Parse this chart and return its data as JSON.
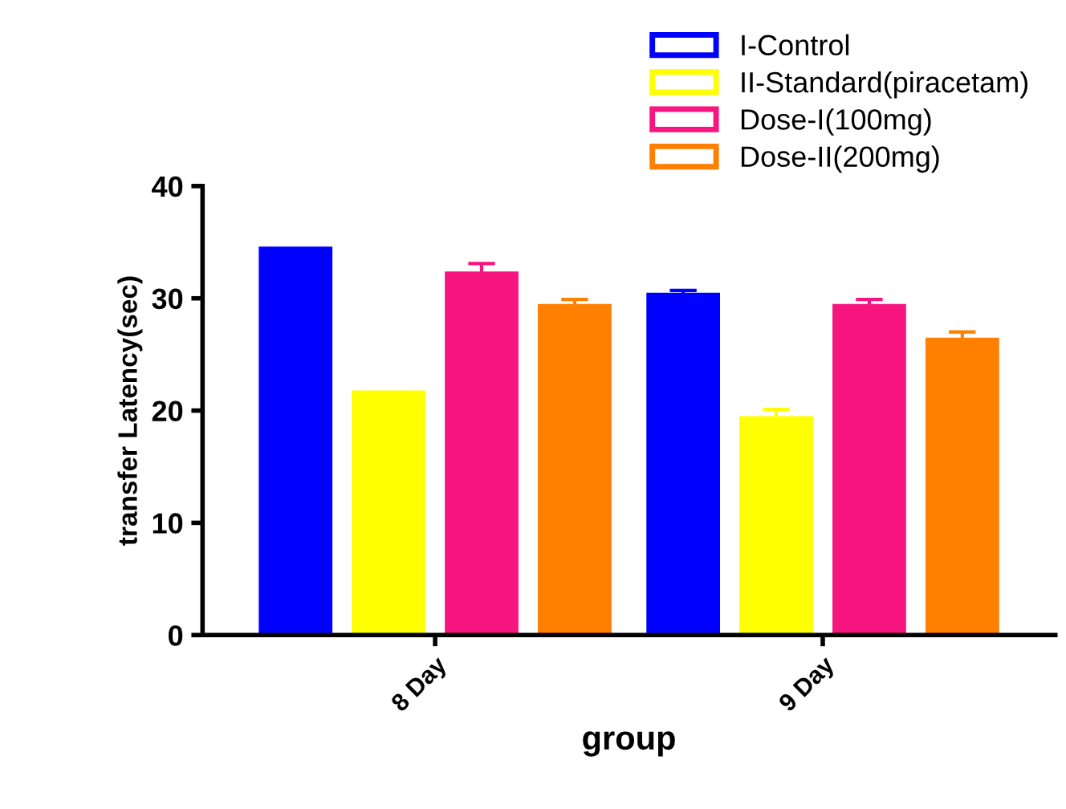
{
  "chart_data": {
    "type": "bar",
    "xlabel": "group",
    "ylabel": "transfer Latency(sec)",
    "categories": [
      "8 Day",
      "9 Day"
    ],
    "series": [
      {
        "name": "I-Control",
        "color": "#0000ff",
        "values": [
          34.6,
          30.5
        ],
        "errors": [
          null,
          0.2
        ]
      },
      {
        "name": "II-Standard(piracetam)",
        "color": "#ffff00",
        "values": [
          21.8,
          19.5
        ],
        "errors": [
          null,
          0.6
        ]
      },
      {
        "name": "Dose-I(100mg)",
        "color": "#f7157f",
        "values": [
          32.4,
          29.5
        ],
        "errors": [
          0.7,
          0.4
        ]
      },
      {
        "name": "Dose-II(200mg)",
        "color": "#ff7f00",
        "values": [
          29.5,
          26.5
        ],
        "errors": [
          0.4,
          0.5
        ]
      }
    ],
    "ylim": [
      0,
      40
    ],
    "yticks": [
      0,
      10,
      20,
      30,
      40
    ],
    "grid": false,
    "legend": "top right"
  }
}
